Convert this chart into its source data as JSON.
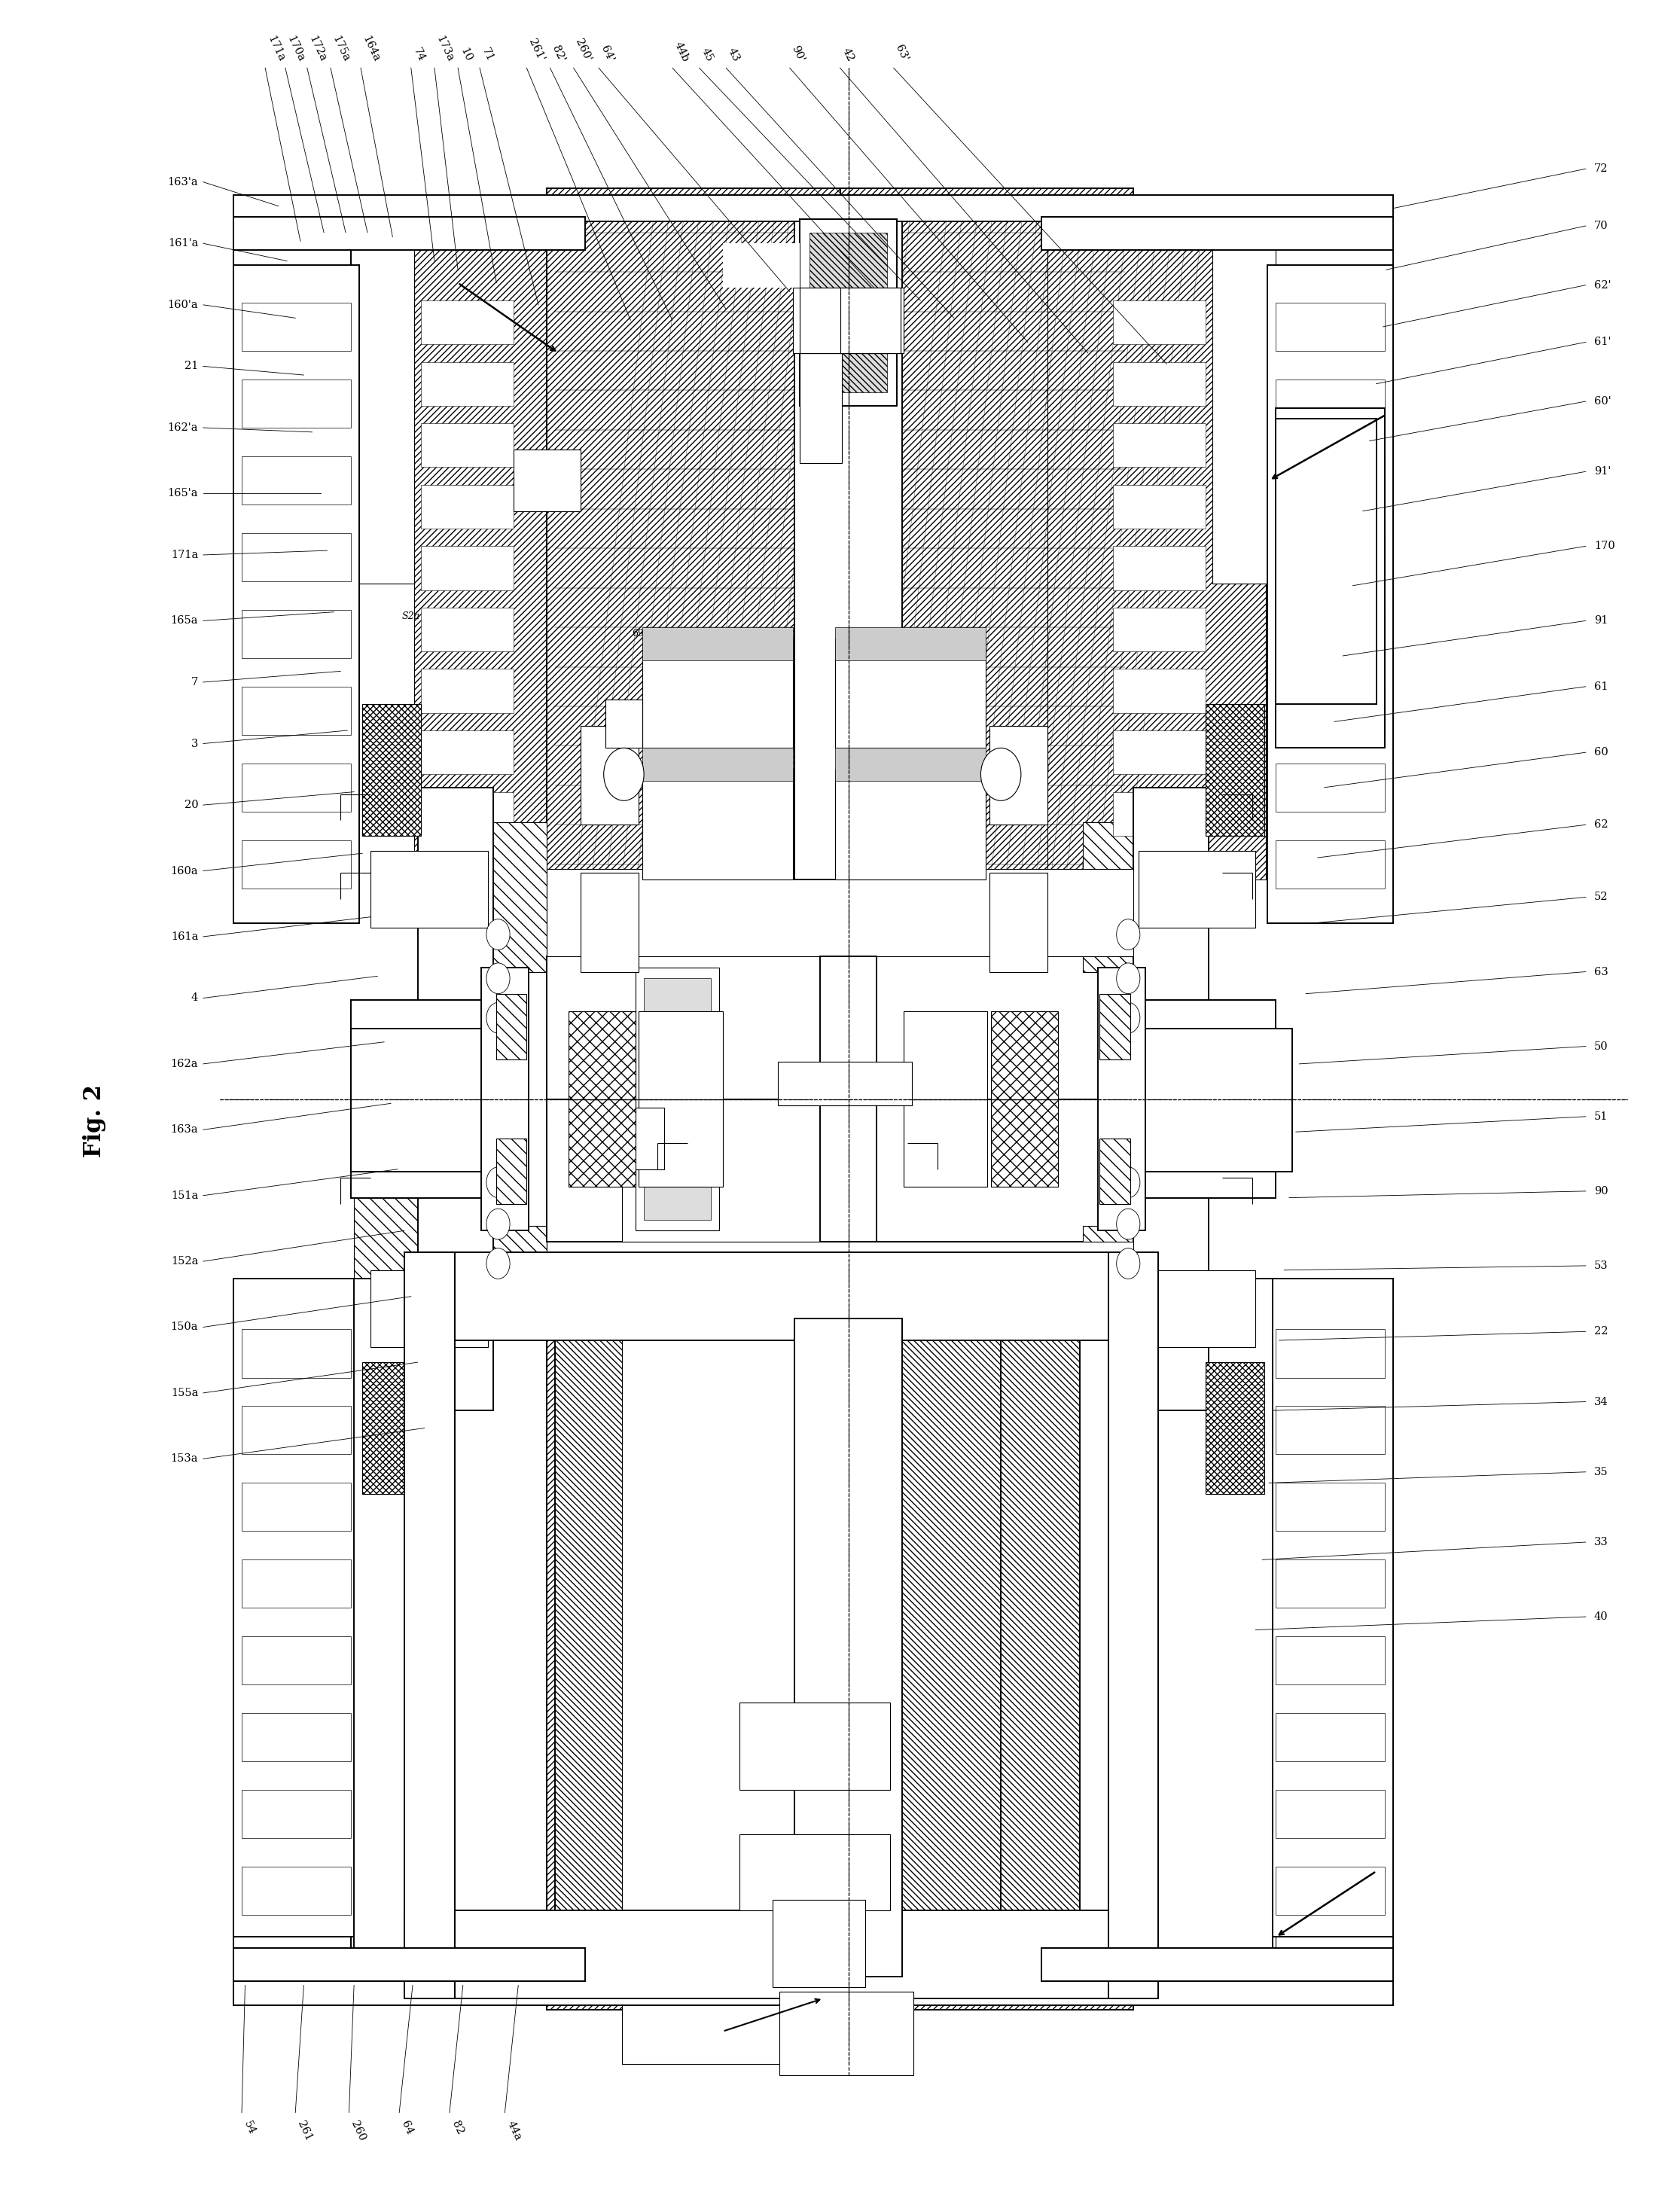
{
  "title": "Fig. 2",
  "bg": "#ffffff",
  "lc": "#000000",
  "fig_w": 22.31,
  "fig_h": 29.19,
  "top_labels": [
    [
      "171a",
      0.157
    ],
    [
      "170a",
      0.169
    ],
    [
      "172a",
      0.182
    ],
    [
      "175a",
      0.196
    ],
    [
      "164a",
      0.214
    ],
    [
      "74",
      0.244
    ],
    [
      "173a",
      0.258
    ],
    [
      "10",
      0.272
    ],
    [
      "71",
      0.285
    ],
    [
      "261'",
      0.313
    ],
    [
      "82'",
      0.327
    ],
    [
      "260'",
      0.341
    ],
    [
      "64'",
      0.356
    ],
    [
      "44b",
      0.4
    ],
    [
      "45",
      0.416
    ],
    [
      "43",
      0.432
    ],
    [
      "90'",
      0.47
    ],
    [
      "42",
      0.5
    ],
    [
      "63'",
      0.532
    ]
  ],
  "right_labels": [
    [
      "72",
      0.924
    ],
    [
      "70",
      0.898
    ],
    [
      "62'",
      0.871
    ],
    [
      "61'",
      0.845
    ],
    [
      "60'",
      0.818
    ],
    [
      "91'",
      0.786
    ],
    [
      "170",
      0.752
    ],
    [
      "91",
      0.718
    ],
    [
      "61",
      0.688
    ],
    [
      "60",
      0.658
    ],
    [
      "62",
      0.625
    ],
    [
      "52",
      0.592
    ],
    [
      "63",
      0.558
    ],
    [
      "50",
      0.524
    ],
    [
      "51",
      0.492
    ],
    [
      "90",
      0.458
    ],
    [
      "53",
      0.424
    ],
    [
      "22",
      0.394
    ],
    [
      "34",
      0.362
    ],
    [
      "35",
      0.33
    ],
    [
      "33",
      0.298
    ],
    [
      "40",
      0.264
    ]
  ],
  "left_labels": [
    [
      "163'a",
      0.918
    ],
    [
      "161'a",
      0.89
    ],
    [
      "160'a",
      0.862
    ],
    [
      "21",
      0.834
    ],
    [
      "162'a",
      0.806
    ],
    [
      "165'a",
      0.776
    ],
    [
      "171a",
      0.748
    ],
    [
      "165a",
      0.718
    ],
    [
      "7",
      0.69
    ],
    [
      "3",
      0.662
    ],
    [
      "20",
      0.634
    ],
    [
      "160a",
      0.604
    ],
    [
      "161a",
      0.574
    ],
    [
      "4",
      0.546
    ],
    [
      "162a",
      0.516
    ],
    [
      "163a",
      0.486
    ],
    [
      "151a",
      0.456
    ],
    [
      "152a",
      0.426
    ],
    [
      "150a",
      0.396
    ],
    [
      "155a",
      0.366
    ],
    [
      "153a",
      0.336
    ]
  ],
  "bottom_labels": [
    [
      "54",
      0.143
    ],
    [
      "261",
      0.175
    ],
    [
      "260",
      0.207
    ],
    [
      "64",
      0.237
    ],
    [
      "82",
      0.267
    ],
    [
      "44a",
      0.3
    ]
  ]
}
